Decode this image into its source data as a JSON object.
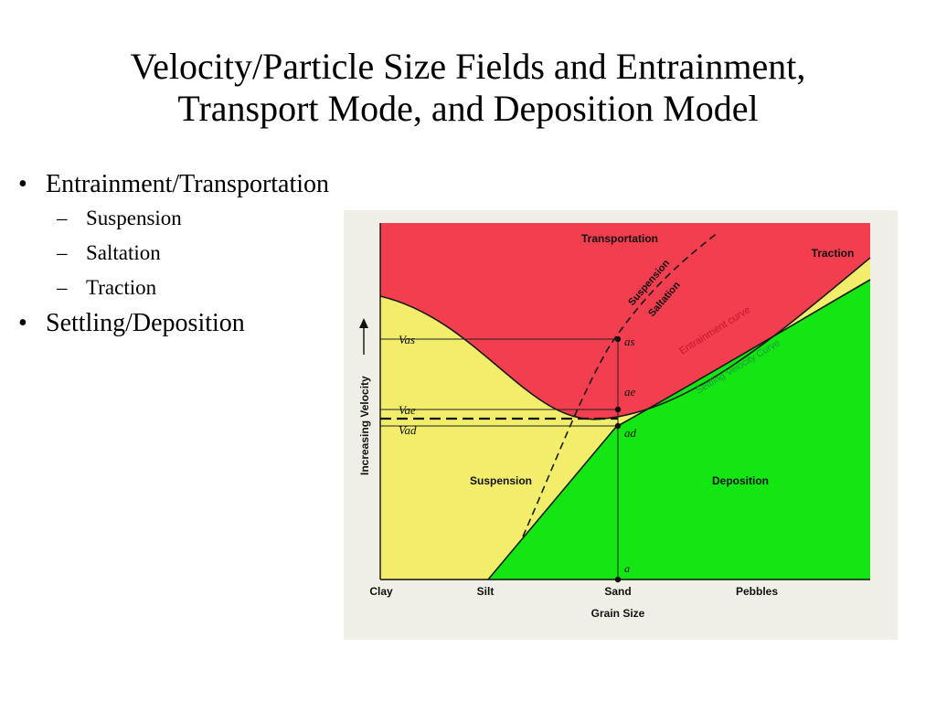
{
  "title": {
    "line1": "Velocity/Particle Size Fields and Entrainment,",
    "line2": "Transport Mode, and Deposition Model"
  },
  "bullets": {
    "entrainment": "Entrainment/Transportation",
    "suspension": "Suspension",
    "saltation": "Saltation",
    "traction": "Traction",
    "settling": "Settling/Deposition"
  },
  "figure": {
    "regions": {
      "transportation": "Transportation",
      "traction": "Traction",
      "suspension": "Suspension",
      "deposition": "Deposition"
    },
    "curves": {
      "suspension": "Suspension",
      "saltation": "Saltation",
      "entrainment": "Entrainment curve",
      "settling": "Settling Velocity Curve"
    },
    "velocity_labels": {
      "vas": "Vas",
      "vae": "Vae",
      "vad": "Vad"
    },
    "point_labels": {
      "as": "as",
      "ae": "ae",
      "ad": "ad",
      "a": "a"
    },
    "y_axis_label": "Increasing Velocity",
    "x_axis_label": "Grain Size",
    "x_ticks": [
      "Clay",
      "Silt",
      "Sand",
      "Pebbles"
    ],
    "colors": {
      "transport_red": "#f23e4f",
      "suspension_yellow": "#f2ee6c",
      "deposition_green": "#14e614",
      "background": "#efefe8"
    }
  }
}
